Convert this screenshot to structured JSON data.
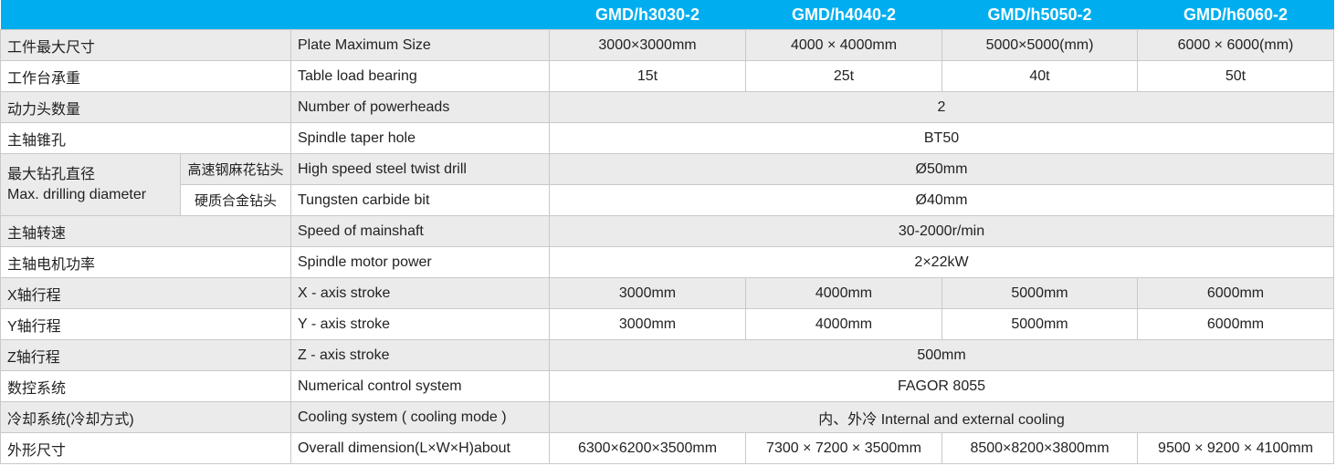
{
  "header": {
    "models": [
      "GMD/h3030-2",
      "GMD/h4040-2",
      "GMD/h5050-2",
      "GMD/h6060-2"
    ]
  },
  "rows": [
    {
      "cn": "工件最大尺寸",
      "en": "Plate Maximum Size",
      "values": [
        "3000×3000mm",
        "4000 × 4000mm",
        "5000×5000(mm)",
        "6000 × 6000(mm)"
      ]
    },
    {
      "cn": "工作台承重",
      "en": "Table load bearing",
      "values": [
        "15t",
        "25t",
        "40t",
        "50t"
      ]
    },
    {
      "cn": "动力头数量",
      "en": "Number of powerheads",
      "values": [
        "2"
      ]
    },
    {
      "cn": "主轴锥孔",
      "en": "Spindle taper hole",
      "values": [
        "BT50"
      ]
    },
    {
      "cn": "最大钻孔直径",
      "cn_en": "Max. drilling diameter",
      "sub_cn": "高速钢麻花钻头",
      "en": "High speed steel twist drill",
      "values": [
        "Ø50mm"
      ]
    },
    {
      "sub_cn": "硬质合金钻头",
      "en": "Tungsten carbide bit",
      "values": [
        "Ø40mm"
      ]
    },
    {
      "cn": "主轴转速",
      "en": "Speed of mainshaft",
      "values": [
        "30-2000r/min"
      ]
    },
    {
      "cn": "主轴电机功率",
      "en": "Spindle motor power",
      "values": [
        "2×22kW"
      ]
    },
    {
      "cn": "X轴行程",
      "en": "X - axis stroke",
      "values": [
        "3000mm",
        "4000mm",
        "5000mm",
        "6000mm"
      ]
    },
    {
      "cn": "Y轴行程",
      "en": "Y - axis stroke",
      "values": [
        "3000mm",
        "4000mm",
        "5000mm",
        "6000mm"
      ]
    },
    {
      "cn": "Z轴行程",
      "en": "Z - axis stroke",
      "values": [
        "500mm"
      ]
    },
    {
      "cn": "数控系统",
      "en": "Numerical control system",
      "values": [
        "FAGOR 8055"
      ]
    },
    {
      "cn": "冷却系统(冷却方式)",
      "en": "Cooling system ( cooling mode )",
      "values": [
        "内、外冷 Internal and external cooling"
      ]
    },
    {
      "cn": "外形尺寸",
      "en": "Overall dimension(L×W×H)about",
      "values": [
        "6300×6200×3500mm",
        "7300 × 7200 × 3500mm",
        "8500×8200×3800mm",
        "9500 × 9200 × 4100mm"
      ]
    }
  ],
  "colors": {
    "header_bg": "#00aeef",
    "row_alt": "#ebebeb",
    "border": "#c9c9c9"
  }
}
